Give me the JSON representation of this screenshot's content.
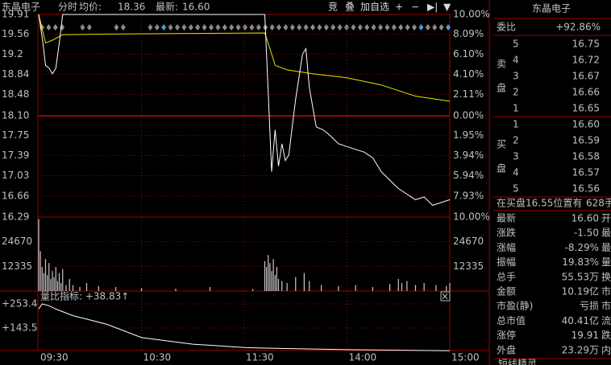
{
  "header": {
    "name": "东晶电子",
    "mode": "分时",
    "avg_label": "均价:",
    "avg": "18.36",
    "last_label": "最新:",
    "last": "16.60"
  },
  "toolbar": [
    "竞",
    "叠",
    "加自选",
    "+",
    "−",
    "▶|",
    "▼"
  ],
  "price": {
    "ylim": [
      16.29,
      19.91
    ],
    "yticks": [
      19.91,
      19.56,
      19.2,
      18.84,
      18.48,
      {
        "value": 18.1,
        "label": "18.10"
      },
      17.75,
      17.39,
      17.03,
      16.66,
      16.29
    ],
    "pct_labels": [
      "10.00%",
      "8.09%",
      "6.10%",
      "4.10%",
      "2.11%",
      "0.00%",
      "1.95%",
      "3.94%",
      "5.94%",
      "7.93%",
      "10.00%"
    ],
    "x": [
      0,
      2,
      4,
      6,
      8,
      10,
      12,
      14,
      20,
      40,
      60,
      80,
      100,
      120,
      132,
      134,
      136,
      138,
      140,
      142,
      144,
      146,
      148,
      150,
      154,
      156,
      158,
      162,
      166,
      170,
      175,
      180,
      185,
      190,
      195,
      200,
      205,
      210,
      215,
      220,
      225,
      230,
      235,
      240
    ],
    "values": [
      19.91,
      19.5,
      19.0,
      18.95,
      18.85,
      18.95,
      19.4,
      19.91,
      19.91,
      19.91,
      19.91,
      19.91,
      19.91,
      19.91,
      19.91,
      18.5,
      17.1,
      17.85,
      17.2,
      17.6,
      17.3,
      17.4,
      17.9,
      18.4,
      19.2,
      19.3,
      18.6,
      17.9,
      17.85,
      17.75,
      17.6,
      17.55,
      17.5,
      17.45,
      17.35,
      17.1,
      16.95,
      16.8,
      16.7,
      16.6,
      16.65,
      16.5,
      16.55,
      16.6
    ],
    "color": "#ffffff",
    "avg_x": [
      0,
      4,
      8,
      14,
      40,
      132,
      135,
      138,
      145,
      160,
      180,
      200,
      220,
      240
    ],
    "avg_values": [
      19.91,
      19.4,
      19.45,
      19.55,
      19.56,
      19.58,
      19.3,
      19.0,
      18.92,
      18.85,
      18.78,
      18.65,
      18.45,
      18.36
    ],
    "avg_color": "#e6e600"
  },
  "volume": {
    "ylim": [
      0,
      37005
    ],
    "yticks": [
      24670,
      12335
    ],
    "color": "#c8c8c8",
    "x": [
      0,
      1,
      2,
      3,
      4,
      5,
      6,
      7,
      8,
      9,
      10,
      11,
      12,
      13,
      14,
      16,
      18,
      20,
      24,
      28,
      35,
      45,
      60,
      80,
      100,
      125,
      132,
      133,
      134,
      135,
      136,
      137,
      138,
      139,
      140,
      142,
      145,
      150,
      155,
      158,
      165,
      175,
      185,
      195,
      205,
      210,
      212,
      215,
      220,
      225,
      232,
      238,
      240
    ],
    "values": [
      36000,
      20000,
      12000,
      9000,
      16000,
      8000,
      14000,
      6000,
      10000,
      7000,
      12000,
      5000,
      9000,
      4000,
      11000,
      3000,
      6000,
      3000,
      2000,
      4000,
      2500,
      2000,
      1500,
      1200,
      2000,
      1000,
      15000,
      12000,
      18000,
      14000,
      10000,
      16000,
      8000,
      12000,
      6000,
      5000,
      4000,
      7000,
      9000,
      5000,
      3000,
      2500,
      3000,
      2000,
      3500,
      6000,
      4000,
      5000,
      3000,
      4000,
      3000,
      2500,
      4000
    ]
  },
  "indicator": {
    "label": "量比指标: +38.83↑",
    "ylim": [
      26.3,
      282.7
    ],
    "yticks": [
      {
        "value": 253.4,
        "label": "+253.4"
      },
      {
        "value": 143.5,
        "label": "+143.5"
      }
    ],
    "x": [
      0,
      2,
      6,
      10,
      20,
      30,
      40,
      60,
      90,
      120,
      132,
      180,
      240
    ],
    "values": [
      230,
      253.4,
      245,
      230,
      200,
      180,
      160,
      100,
      70,
      55,
      52,
      45,
      40
    ],
    "color": "#ffffff"
  },
  "time_ticks": [
    {
      "value": 0,
      "label": "09:30"
    },
    {
      "value": 60,
      "label": "10:30"
    },
    {
      "value": 120,
      "label": "11:30"
    },
    {
      "value": 180,
      "label": "14:00"
    },
    {
      "value": 240,
      "label": "15:00"
    }
  ],
  "quote": {
    "title": "东晶电子",
    "wb_label": "委比",
    "wb": "+92.86%",
    "sell_chars": [
      "卖",
      "盘"
    ],
    "buy_chars": [
      "买",
      "盘"
    ],
    "sell": [
      [
        "5",
        "16.75"
      ],
      [
        "4",
        "16.72"
      ],
      [
        "3",
        "16.67"
      ],
      [
        "2",
        "16.66"
      ],
      [
        "1",
        "16.65"
      ]
    ],
    "buy": [
      [
        "1",
        "16.60"
      ],
      [
        "2",
        "16.59"
      ],
      [
        "3",
        "16.58"
      ],
      [
        "4",
        "16.57"
      ],
      [
        "5",
        "16.56"
      ]
    ],
    "note": "在买盘16.55位置有",
    "note_vol": "628手",
    "stats": [
      [
        "最新",
        "16.60",
        "开",
        "#33dd33"
      ],
      [
        "涨跌",
        "-1.50",
        "最",
        "#33dd33"
      ],
      [
        "涨幅",
        "-8.29%",
        "最",
        "#33dd33"
      ],
      [
        "振幅",
        "19.83%",
        "量",
        "#44ccee"
      ],
      [
        "总手",
        "55.53万",
        "换",
        "#44ccee"
      ],
      [
        "金额",
        "10.19亿",
        "市",
        "#44ccee"
      ],
      [
        "市盈(静)",
        "亏损",
        "市",
        "#c0c0c0"
      ],
      [
        "总市值",
        "40.41亿",
        "流",
        "#44ccee"
      ],
      [
        "涨停",
        "19.91",
        "跌",
        "#ff3333"
      ],
      [
        "外盘",
        "23.29万",
        "内",
        "#ff3333"
      ]
    ],
    "footer": "短线精灵"
  }
}
